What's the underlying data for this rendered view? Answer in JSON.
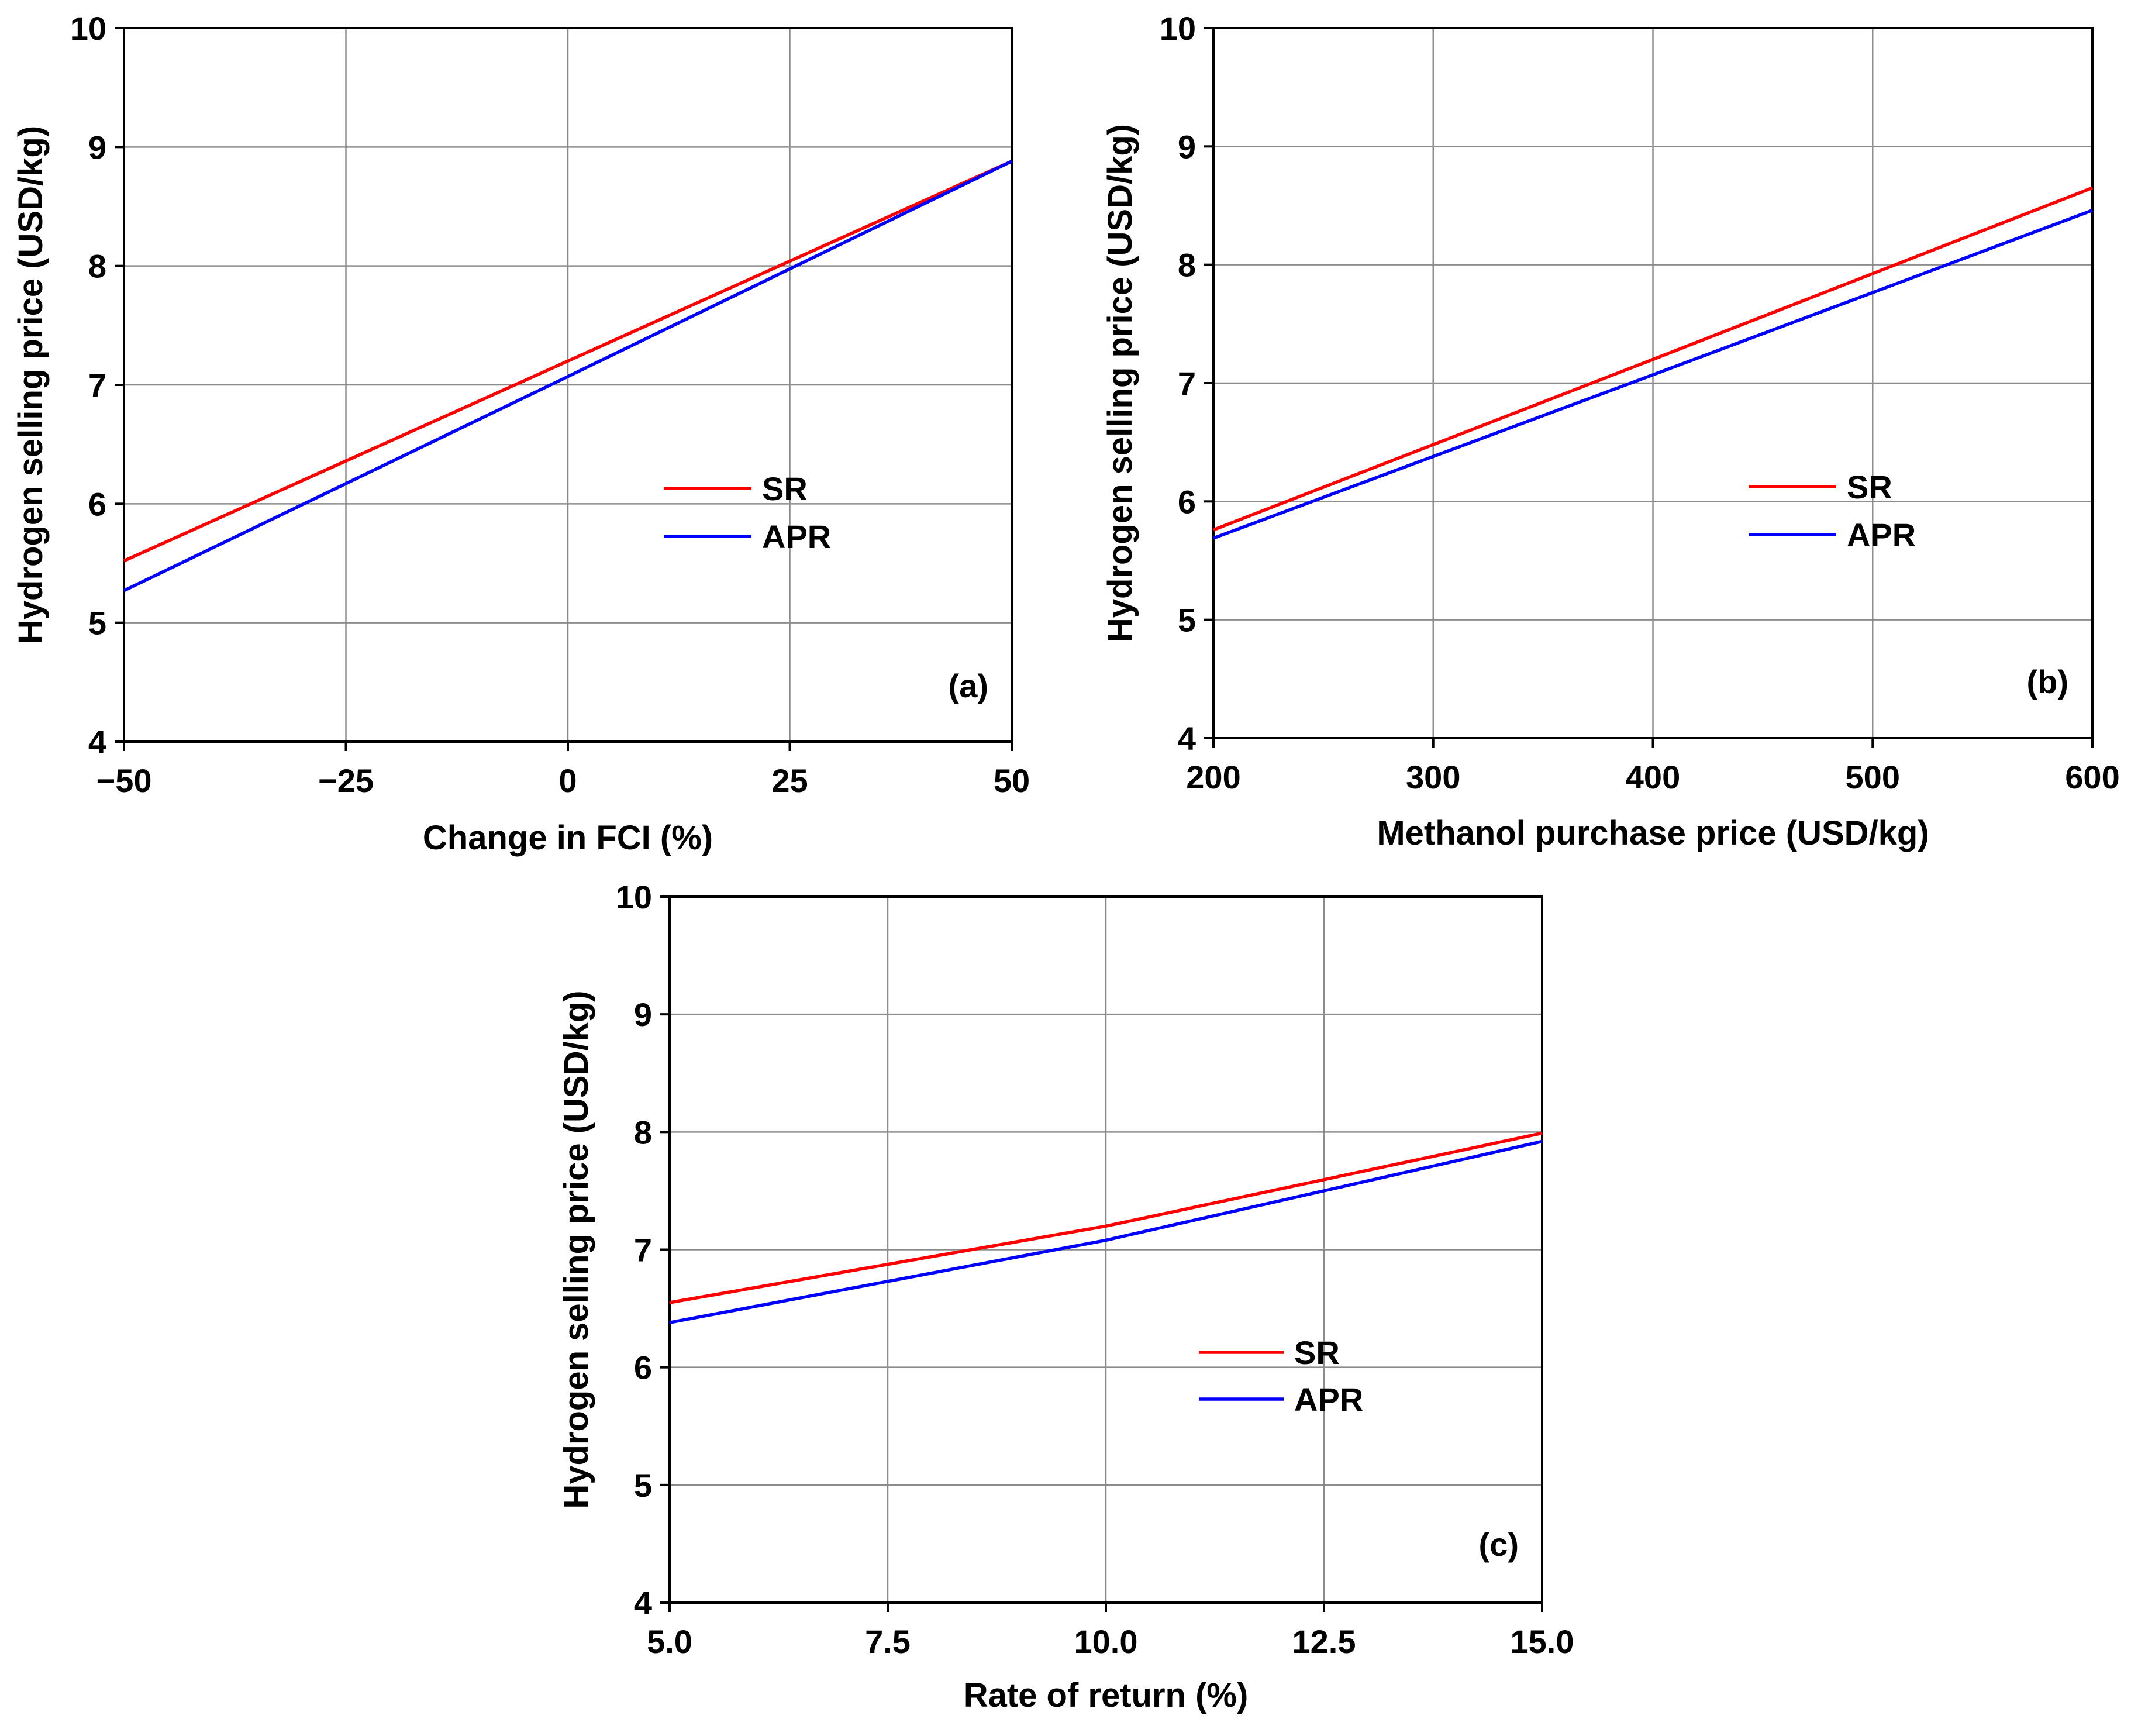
{
  "colors": {
    "SR": "#ff0000",
    "APR": "#0000ff",
    "grid": "#8c8c8c",
    "axis": "#000000"
  },
  "chart_data": [
    {
      "type": "line",
      "panel_label": "(a)",
      "xlabel_main": "Change in FCI ",
      "xlabel_unit": "(%)",
      "ylabel": "Hydrogen selling price (USD/kg)",
      "xlim": [
        -50,
        50
      ],
      "ylim": [
        4,
        10
      ],
      "xticks": [
        -50,
        -25,
        0,
        25,
        50
      ],
      "xtick_labels": [
        "−50",
        "−25",
        "0",
        "25",
        "50"
      ],
      "yticks": [
        4,
        5,
        6,
        7,
        8,
        9,
        10
      ],
      "ytick_labels": [
        "4",
        "5",
        "6",
        "7",
        "8",
        "9",
        "10"
      ],
      "grid": true,
      "legend": {
        "position": "center-right",
        "entries": [
          "SR",
          "APR"
        ]
      },
      "series": [
        {
          "name": "SR",
          "x": [
            -50,
            0,
            50
          ],
          "y": [
            5.52,
            7.2,
            8.88
          ]
        },
        {
          "name": "APR",
          "x": [
            -50,
            0,
            50
          ],
          "y": [
            5.27,
            7.07,
            8.88
          ]
        }
      ]
    },
    {
      "type": "line",
      "panel_label": "(b)",
      "xlabel_main": "Methanol purchase price ",
      "xlabel_unit": "(USD/kg)",
      "ylabel": "Hydrogen selling price (USD/kg)",
      "xlim": [
        200,
        600
      ],
      "ylim": [
        4,
        10
      ],
      "xticks": [
        200,
        300,
        400,
        500,
        600
      ],
      "xtick_labels": [
        "200",
        "300",
        "400",
        "500",
        "600"
      ],
      "yticks": [
        4,
        5,
        6,
        7,
        8,
        9,
        10
      ],
      "ytick_labels": [
        "4",
        "5",
        "6",
        "7",
        "8",
        "9",
        "10"
      ],
      "grid": true,
      "legend": {
        "position": "center-right",
        "entries": [
          "SR",
          "APR"
        ]
      },
      "series": [
        {
          "name": "SR",
          "x": [
            200,
            400,
            600
          ],
          "y": [
            5.76,
            7.2,
            8.65
          ]
        },
        {
          "name": "APR",
          "x": [
            200,
            400,
            600
          ],
          "y": [
            5.69,
            7.07,
            8.46
          ]
        }
      ]
    },
    {
      "type": "line",
      "panel_label": "(c)",
      "xlabel_main": "Rate of return ",
      "xlabel_unit": "(%)",
      "ylabel": "Hydrogen selling price (USD/kg)",
      "xlim": [
        5,
        15
      ],
      "ylim": [
        4,
        10
      ],
      "xticks": [
        5,
        7.5,
        10,
        12.5,
        15
      ],
      "xtick_labels": [
        "5.0",
        "7.5",
        "10.0",
        "12.5",
        "15.0"
      ],
      "yticks": [
        4,
        5,
        6,
        7,
        8,
        9,
        10
      ],
      "ytick_labels": [
        "4",
        "5",
        "6",
        "7",
        "8",
        "9",
        "10"
      ],
      "grid": true,
      "legend": {
        "position": "center",
        "entries": [
          "SR",
          "APR"
        ]
      },
      "series": [
        {
          "name": "SR",
          "x": [
            5,
            10,
            15
          ],
          "y": [
            6.55,
            7.2,
            7.99
          ]
        },
        {
          "name": "APR",
          "x": [
            5,
            10,
            15
          ],
          "y": [
            6.38,
            7.08,
            7.92
          ]
        }
      ]
    }
  ]
}
